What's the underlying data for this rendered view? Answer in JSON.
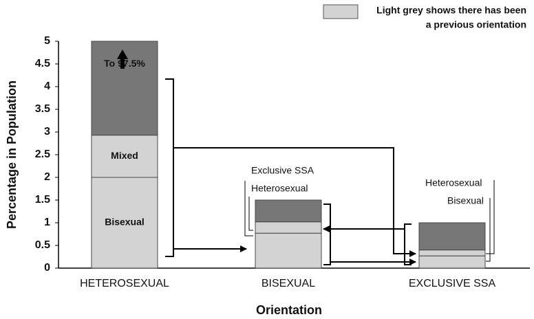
{
  "chart_data": {
    "type": "stacked_bar",
    "ylabel": "Percentage in Population",
    "xlabel": "Orientation",
    "legend": [
      "Light grey shows there has been",
      "a previous orientation"
    ],
    "legend_color": "#d3d3d3",
    "categories": [
      "HETEROSEXUAL",
      "BISEXUAL",
      "EXCLUSIVE SSA"
    ],
    "stacks": [
      [
        {
          "label": "Bisexual",
          "value": 2,
          "color": "#d3d3d3"
        },
        {
          "label": "Mixed",
          "value": 0.93,
          "color": "#d3d3d3"
        },
        {
          "label": "To 97.5%",
          "value": 2.07,
          "color": "#777777"
        }
      ],
      [
        {
          "label": "Exclusive SSA",
          "value": 0.77,
          "color": "#d3d3d3"
        },
        {
          "label": "Heterosexual",
          "value": 0.25,
          "color": "#d3d3d3"
        },
        {
          "value": 0.48,
          "color": "#777777"
        }
      ],
      [
        {
          "label": "Bisexual",
          "value": 0.27,
          "color": "#d3d3d3"
        },
        {
          "label": "Heterosexual",
          "value": 0.13,
          "color": "#d3d3d3"
        },
        {
          "value": 0.6,
          "color": "#777777"
        }
      ]
    ],
    "ylim": [
      0,
      5
    ],
    "yticks": [
      0,
      0.5,
      1,
      1.5,
      2,
      2.5,
      3,
      3.5,
      4,
      4.5,
      5
    ]
  }
}
